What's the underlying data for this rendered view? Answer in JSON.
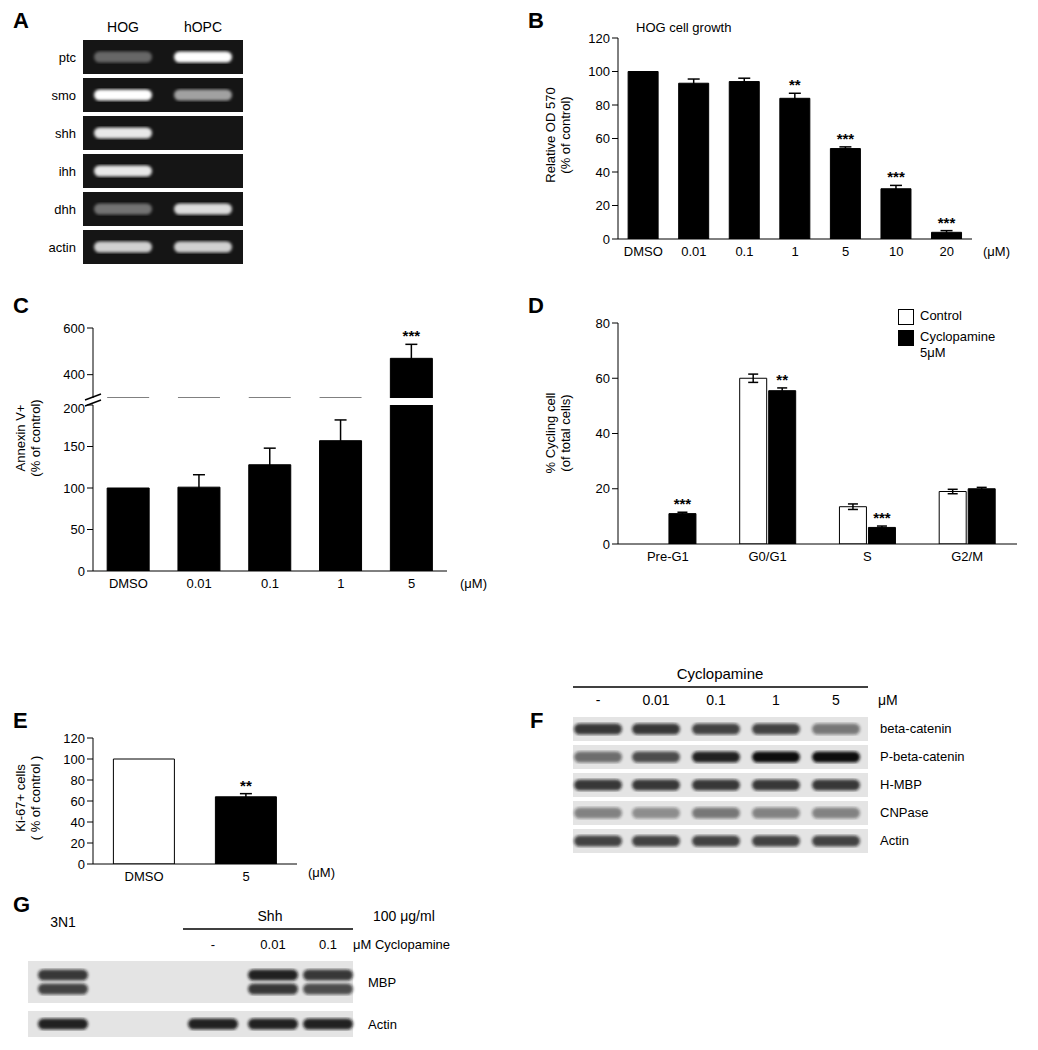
{
  "chart_data": [
    {
      "panel": "B",
      "type": "bar",
      "title": "HOG cell growth",
      "categories": [
        "DMSO",
        "0.01",
        "0.1",
        "1",
        "5",
        "10",
        "20"
      ],
      "values": [
        100,
        93,
        94,
        84,
        54,
        30,
        4
      ],
      "errors": [
        0,
        2.5,
        2,
        3,
        1,
        2,
        1
      ],
      "significance": [
        null,
        null,
        null,
        "**",
        "***",
        "***",
        "***"
      ],
      "color": "#000000",
      "ylabel": [
        "Relative OD 570",
        "(% of control)"
      ],
      "xlabel": "(μM)",
      "ylim": [
        0,
        120
      ],
      "yticks": [
        0,
        20,
        40,
        60,
        80,
        100,
        120
      ]
    },
    {
      "panel": "C",
      "type": "bar",
      "categories": [
        "DMSO",
        "0.01",
        "0.1",
        "1",
        "5"
      ],
      "values": [
        100,
        101,
        128,
        157,
        470
      ],
      "errors": [
        0,
        15,
        20,
        25,
        60
      ],
      "significance": [
        null,
        null,
        null,
        null,
        "***"
      ],
      "color": "#000000",
      "ylabel": [
        "Annexin V+",
        "(% of control)"
      ],
      "xlabel": "(μM)",
      "ylim": [
        0,
        600
      ],
      "y_break": [
        200,
        300
      ],
      "yticks": [
        0,
        50,
        100,
        150,
        200,
        400,
        600
      ]
    },
    {
      "panel": "D",
      "type": "bar",
      "categories": [
        "Pre-G1",
        "G0/G1",
        "S",
        "G2/M"
      ],
      "series": [
        {
          "name": "Control",
          "color": "#ffffff",
          "values": [
            0,
            60,
            13.5,
            19
          ],
          "errors": [
            0,
            1.5,
            1,
            0.8
          ]
        },
        {
          "name": "Cyclopamine 5μM",
          "color": "#000000",
          "values": [
            11,
            55.5,
            6,
            20
          ],
          "errors": [
            0.5,
            1,
            0.5,
            0.5
          ],
          "significance": [
            "***",
            "**",
            "***",
            null
          ]
        }
      ],
      "legend": "top-right",
      "ylabel": [
        "% Cycling cell",
        "(of total cells)"
      ],
      "ylim": [
        0,
        80
      ],
      "yticks": [
        0,
        20,
        40,
        60,
        80
      ]
    },
    {
      "panel": "E",
      "type": "bar",
      "categories": [
        "DMSO",
        "5"
      ],
      "values": [
        100,
        64
      ],
      "errors": [
        0,
        3
      ],
      "significance": [
        null,
        "**"
      ],
      "colors": [
        "#ffffff",
        "#000000"
      ],
      "ylabel": [
        "Ki-67+ cells",
        "( % of control )"
      ],
      "xlabel": "(μM)",
      "ylim": [
        0,
        120
      ],
      "yticks": [
        0,
        20,
        40,
        60,
        80,
        100,
        120
      ]
    }
  ],
  "blots": [
    {
      "panel": "A",
      "lanes": [
        "HOG",
        "hOPC"
      ],
      "rows": [
        {
          "name": "ptc",
          "bands": [
            0.35,
            1
          ]
        },
        {
          "name": "smo",
          "bands": [
            1,
            0.6
          ]
        },
        {
          "name": "shh",
          "bands": [
            0.9,
            0
          ]
        },
        {
          "name": "ihh",
          "bands": [
            0.9,
            0
          ]
        },
        {
          "name": "dhh",
          "bands": [
            0.4,
            0.85
          ]
        },
        {
          "name": "actin",
          "bands": [
            0.8,
            0.8
          ]
        }
      ]
    },
    {
      "panel": "F",
      "header": "Cyclopamine",
      "lanes": [
        "-",
        "0.01",
        "0.1",
        "1",
        "5"
      ],
      "unit": "μM",
      "rows": [
        {
          "name": "beta-catenin",
          "bands": [
            0.8,
            0.8,
            0.75,
            0.75,
            0.5
          ]
        },
        {
          "name": "P-beta-catenin",
          "bands": [
            0.55,
            0.7,
            0.9,
            1,
            1
          ]
        },
        {
          "name": "H-MBP",
          "bands": [
            0.8,
            0.8,
            0.8,
            0.8,
            0.8
          ]
        },
        {
          "name": "CNPase",
          "bands": [
            0.45,
            0.4,
            0.5,
            0.45,
            0.45
          ]
        },
        {
          "name": "Actin",
          "bands": [
            0.75,
            0.75,
            0.75,
            0.75,
            0.75
          ]
        }
      ]
    },
    {
      "panel": "G",
      "control_lane": "3N1",
      "group": "Shh",
      "group_dose": "100 μg/ml",
      "lanes": [
        "-",
        "0.01",
        "0.1"
      ],
      "unit": "μM Cyclopamine",
      "rows": [
        {
          "name": "MBP",
          "bands": [
            [
              0.8,
              0.75
            ],
            [
              0,
              0
            ],
            [
              0.9,
              0.8
            ],
            [
              0.8,
              0.7
            ]
          ]
        },
        {
          "name": "Actin",
          "bands": [
            [
              0.9
            ],
            [
              0.9
            ],
            [
              0.9
            ],
            [
              0.9
            ]
          ]
        }
      ]
    }
  ]
}
